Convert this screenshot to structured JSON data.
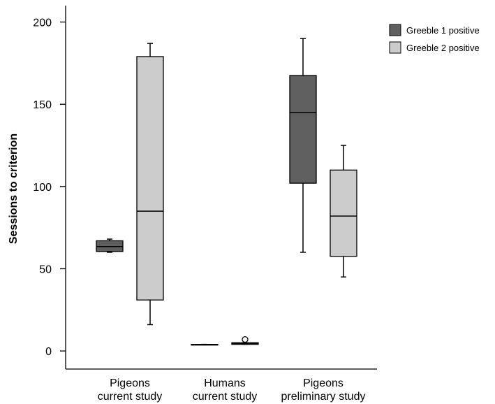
{
  "chart_data": {
    "type": "box",
    "y_label": "Sessions to criterion",
    "categories": [
      "Pigeons\ncurrent study",
      "Humans\ncurrent study",
      "Pigeons\npreliminary study"
    ],
    "series": [
      {
        "name": "Greeble 1 positive",
        "color": "#5f5f5f",
        "values": [
          {
            "min": 60,
            "q1": 60.5,
            "median": 63.5,
            "q3": 67,
            "max": 68,
            "outliers": []
          },
          {
            "min": 4,
            "q1": 4,
            "median": 4,
            "q3": 4,
            "max": 4,
            "outliers": []
          },
          {
            "min": 60,
            "q1": 102,
            "median": 145,
            "q3": 167.5,
            "max": 190,
            "outliers": []
          }
        ]
      },
      {
        "name": "Greeble 2 positive",
        "color": "#cccccc",
        "values": [
          {
            "min": 16,
            "q1": 31,
            "median": 85,
            "q3": 179,
            "max": 187,
            "outliers": []
          },
          {
            "min": 4,
            "q1": 4,
            "median": 4.5,
            "q3": 5,
            "max": 5,
            "outliers": [
              7
            ]
          },
          {
            "min": 45,
            "q1": 57.5,
            "median": 82,
            "q3": 110,
            "max": 125,
            "outliers": []
          }
        ]
      }
    ],
    "ylim": [
      -11,
      210
    ],
    "yticks": [
      0,
      50,
      100,
      150,
      200
    ],
    "legend": "top-right"
  }
}
